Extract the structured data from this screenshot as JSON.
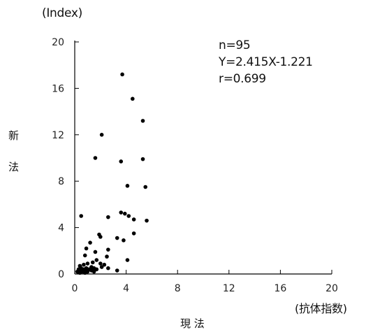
{
  "chart_data": {
    "type": "scatter",
    "title": "",
    "y_unit": "(Index)",
    "x_unit": "(抗体指数)",
    "xlabel": "現 法",
    "ylabel": "新 法",
    "ylabel_chars": [
      "新",
      "法"
    ],
    "xlim": [
      0,
      20
    ],
    "ylim": [
      0,
      20
    ],
    "x_ticks": [
      0,
      4,
      8,
      12,
      16,
      20
    ],
    "y_ticks": [
      0,
      4,
      8,
      12,
      16,
      20
    ],
    "grid": false,
    "annotations": [
      "n=95",
      "Y=2.415X-1.221",
      "r=0.699"
    ],
    "marker_color": "#000000",
    "points": [
      [
        3.7,
        17.2
      ],
      [
        4.5,
        15.1
      ],
      [
        5.3,
        13.2
      ],
      [
        2.1,
        12.0
      ],
      [
        1.6,
        10.0
      ],
      [
        3.6,
        9.7
      ],
      [
        5.3,
        9.9
      ],
      [
        4.1,
        7.6
      ],
      [
        5.5,
        7.5
      ],
      [
        3.6,
        5.3
      ],
      [
        3.9,
        5.2
      ],
      [
        4.2,
        5.0
      ],
      [
        0.5,
        5.0
      ],
      [
        2.6,
        4.9
      ],
      [
        4.6,
        4.7
      ],
      [
        5.6,
        4.6
      ],
      [
        4.6,
        3.5
      ],
      [
        1.9,
        3.4
      ],
      [
        2.0,
        3.2
      ],
      [
        3.3,
        3.1
      ],
      [
        3.8,
        2.9
      ],
      [
        1.2,
        2.7
      ],
      [
        2.6,
        2.1
      ],
      [
        0.9,
        2.2
      ],
      [
        1.6,
        1.9
      ],
      [
        0.8,
        1.6
      ],
      [
        2.5,
        1.5
      ],
      [
        1.7,
        1.2
      ],
      [
        4.1,
        1.2
      ],
      [
        1.4,
        1.0
      ],
      [
        1.0,
        0.9
      ],
      [
        0.7,
        0.8
      ],
      [
        2.0,
        0.9
      ],
      [
        2.3,
        0.8
      ],
      [
        0.4,
        0.7
      ],
      [
        1.3,
        0.6
      ],
      [
        2.1,
        0.6
      ],
      [
        0.5,
        0.5
      ],
      [
        0.9,
        0.5
      ],
      [
        1.5,
        0.5
      ],
      [
        2.6,
        0.5
      ],
      [
        0.3,
        0.4
      ],
      [
        0.7,
        0.4
      ],
      [
        1.1,
        0.4
      ],
      [
        1.7,
        0.4
      ],
      [
        0.4,
        0.3
      ],
      [
        0.9,
        0.3
      ],
      [
        1.3,
        0.3
      ],
      [
        3.3,
        0.3
      ],
      [
        0.2,
        0.2
      ],
      [
        0.6,
        0.2
      ],
      [
        1.0,
        0.2
      ],
      [
        1.5,
        0.2
      ],
      [
        0.4,
        0.1
      ],
      [
        0.8,
        0.1
      ],
      [
        0.3,
        0.15
      ]
    ]
  }
}
